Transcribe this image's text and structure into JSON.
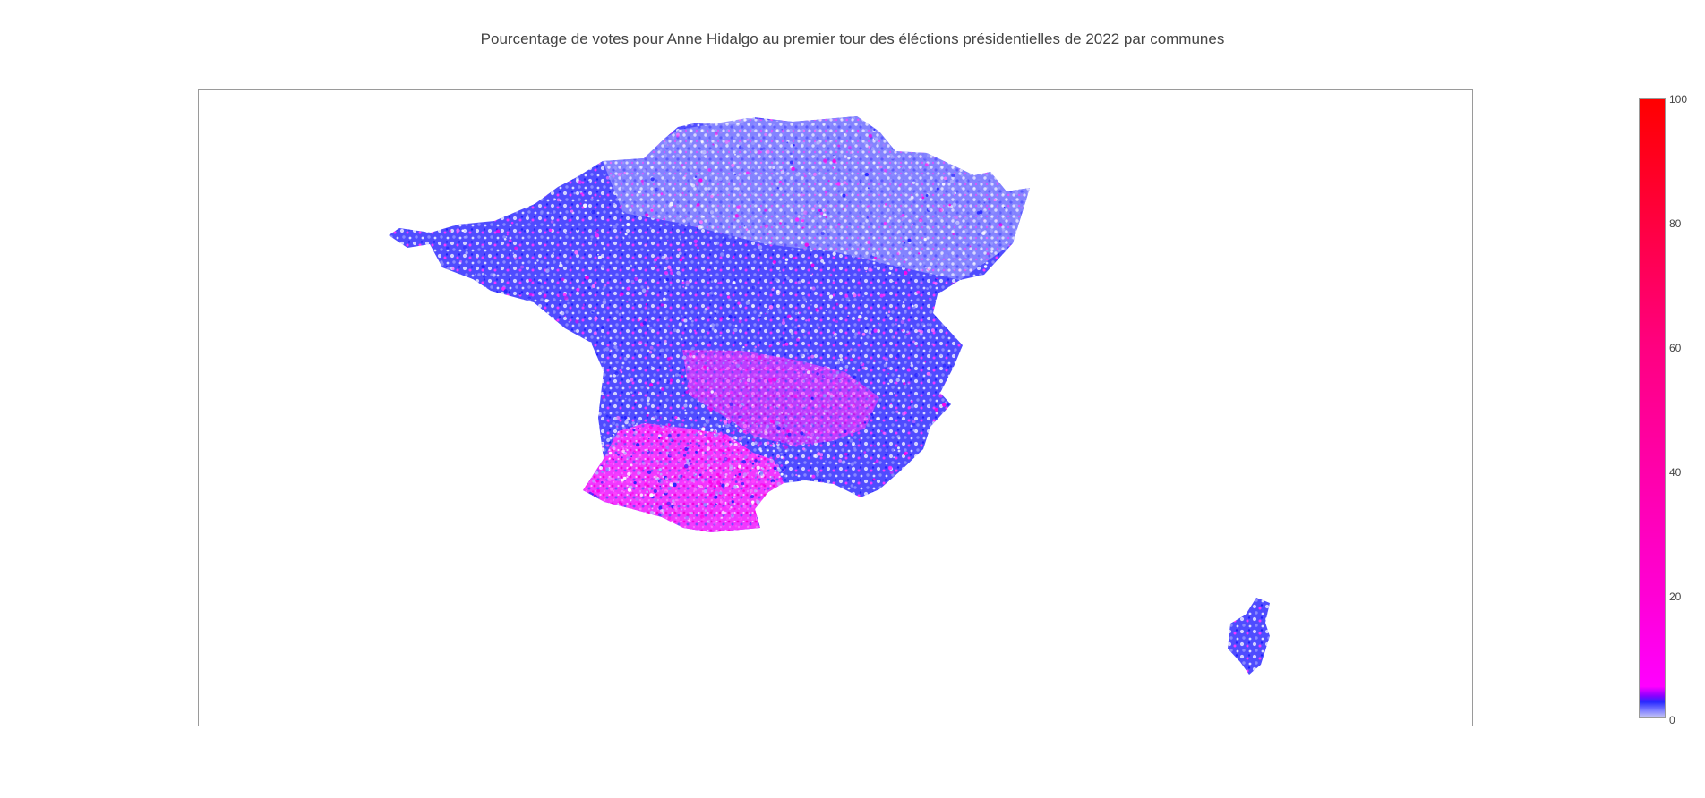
{
  "title": "Pourcentage de votes pour Anne Hidalgo au premier tour des éléctions présidentielles de 2022 par communes",
  "colorbar": {
    "min": 0,
    "max": 100,
    "ticks": [
      "0",
      "20",
      "40",
      "60",
      "80",
      "100"
    ],
    "colors": {
      "low": "#c6c6f2",
      "mid_low": "#2a2aff",
      "mid": "#ff00ff",
      "high": "#ff0000"
    }
  },
  "map": {
    "subject": "France communes choropleth",
    "regions_shown": [
      "mainland France",
      "Corsica"
    ]
  }
}
